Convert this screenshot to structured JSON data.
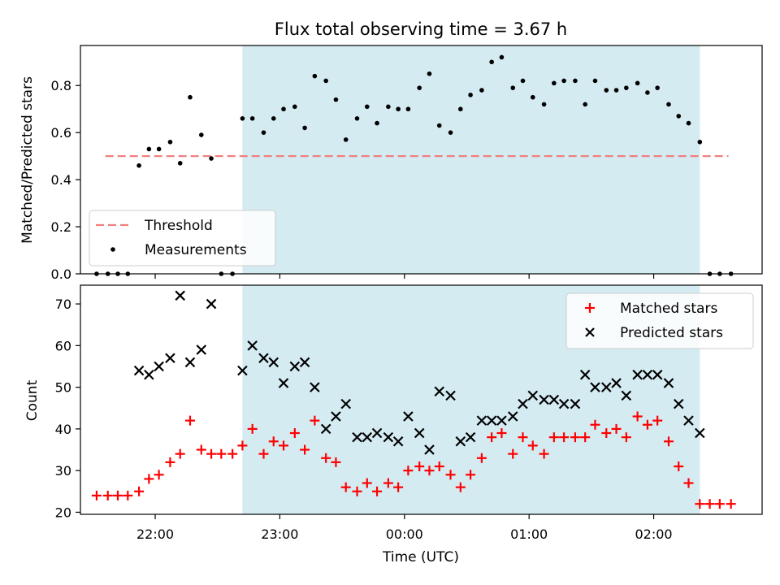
{
  "chart_data": [
    {
      "type": "scatter",
      "title": "Flux total observing time = 3.67 h",
      "xlabel": "",
      "ylabel": "Matched/Predicted stars",
      "ylim": [
        0,
        0.97
      ],
      "yticks": [
        "0.0",
        "0.2",
        "0.4",
        "0.6",
        "0.8"
      ],
      "ytick_values": [
        0,
        0.2,
        0.4,
        0.6,
        0.8
      ],
      "shaded_x_range": [
        22.7,
        2.37
      ],
      "threshold": {
        "name": "Threshold",
        "value": 0.5,
        "x_range": [
          21.6,
          2.6
        ],
        "color": "#f08080"
      },
      "legend": {
        "position": "lower-left",
        "entries": [
          "Threshold",
          "Measurements"
        ]
      },
      "series": [
        {
          "name": "Measurements",
          "color": "#000000",
          "x": [
            21.53,
            21.62,
            21.7,
            21.78,
            21.87,
            21.95,
            22.03,
            22.12,
            22.2,
            22.28,
            22.37,
            22.45,
            22.53,
            22.62,
            22.7,
            22.78,
            22.87,
            22.95,
            23.03,
            23.12,
            23.2,
            23.28,
            23.37,
            23.45,
            23.53,
            23.62,
            23.7,
            23.78,
            23.87,
            23.95,
            0.03,
            0.12,
            0.2,
            0.28,
            0.37,
            0.45,
            0.53,
            0.62,
            0.7,
            0.78,
            0.87,
            0.95,
            1.03,
            1.12,
            1.2,
            1.28,
            1.37,
            1.45,
            1.53,
            1.62,
            1.7,
            1.78,
            1.87,
            1.95,
            2.03,
            2.12,
            2.2,
            2.28,
            2.37,
            2.45,
            2.53,
            2.62
          ],
          "y": [
            0,
            0,
            0,
            0,
            0.46,
            0.53,
            0.53,
            0.56,
            0.47,
            0.75,
            0.59,
            0.49,
            0,
            0,
            0.66,
            0.66,
            0.6,
            0.66,
            0.7,
            0.71,
            0.62,
            0.84,
            0.82,
            0.74,
            0.57,
            0.66,
            0.71,
            0.64,
            0.71,
            0.7,
            0.7,
            0.79,
            0.85,
            0.63,
            0.6,
            0.7,
            0.76,
            0.78,
            0.9,
            0.92,
            0.79,
            0.82,
            0.75,
            0.72,
            0.81,
            0.82,
            0.82,
            0.72,
            0.82,
            0.78,
            0.78,
            0.79,
            0.81,
            0.77,
            0.79,
            0.72,
            0.67,
            0.64,
            0.56,
            0,
            0,
            0
          ]
        }
      ]
    },
    {
      "type": "scatter",
      "title": "",
      "xlabel": "Time (UTC)",
      "ylabel": "Count",
      "ylim": [
        19.5,
        74.5
      ],
      "yticks": [
        "20",
        "30",
        "40",
        "50",
        "60",
        "70"
      ],
      "ytick_values": [
        20,
        30,
        40,
        50,
        60,
        70
      ],
      "xticks": [
        "22:00",
        "23:00",
        "00:00",
        "01:00",
        "02:00"
      ],
      "xtick_values": [
        22,
        23,
        0,
        1,
        2
      ],
      "xlim": [
        21.4,
        2.87
      ],
      "shaded_x_range": [
        22.7,
        2.37
      ],
      "legend": {
        "position": "upper-right",
        "entries": [
          "Matched stars",
          "Predicted stars"
        ]
      },
      "series": [
        {
          "name": "Matched stars",
          "marker": "plus",
          "color": "#ff0000",
          "x": [
            21.53,
            21.62,
            21.7,
            21.78,
            21.87,
            21.95,
            22.03,
            22.12,
            22.2,
            22.28,
            22.37,
            22.45,
            22.53,
            22.62,
            22.7,
            22.78,
            22.87,
            22.95,
            23.03,
            23.12,
            23.2,
            23.28,
            23.37,
            23.45,
            23.53,
            23.62,
            23.7,
            23.78,
            23.87,
            23.95,
            0.03,
            0.12,
            0.2,
            0.28,
            0.37,
            0.45,
            0.53,
            0.62,
            0.7,
            0.78,
            0.87,
            0.95,
            1.03,
            1.12,
            1.2,
            1.28,
            1.37,
            1.45,
            1.53,
            1.62,
            1.7,
            1.78,
            1.87,
            1.95,
            2.03,
            2.12,
            2.2,
            2.28,
            2.37,
            2.45,
            2.53,
            2.62
          ],
          "y": [
            24,
            24,
            24,
            24,
            25,
            28,
            29,
            32,
            34,
            42,
            35,
            34,
            34,
            34,
            36,
            40,
            34,
            37,
            36,
            39,
            35,
            42,
            33,
            32,
            26,
            25,
            27,
            25,
            27,
            26,
            30,
            31,
            30,
            31,
            29,
            26,
            29,
            33,
            38,
            39,
            34,
            38,
            36,
            34,
            38,
            38,
            38,
            38,
            41,
            39,
            40,
            38,
            43,
            41,
            42,
            37,
            31,
            27,
            22,
            22,
            22,
            22
          ]
        },
        {
          "name": "Predicted stars",
          "marker": "x",
          "color": "#000000",
          "x": [
            21.87,
            21.95,
            22.03,
            22.12,
            22.2,
            22.28,
            22.37,
            22.45,
            22.7,
            22.78,
            22.87,
            22.95,
            23.03,
            23.12,
            23.2,
            23.28,
            23.37,
            23.45,
            23.53,
            23.62,
            23.7,
            23.78,
            23.87,
            23.95,
            0.03,
            0.12,
            0.2,
            0.28,
            0.37,
            0.45,
            0.53,
            0.62,
            0.7,
            0.78,
            0.87,
            0.95,
            1.03,
            1.12,
            1.2,
            1.28,
            1.37,
            1.45,
            1.53,
            1.62,
            1.7,
            1.78,
            1.87,
            1.95,
            2.03,
            2.12,
            2.2,
            2.28,
            2.37
          ],
          "y": [
            54,
            53,
            55,
            57,
            72,
            56,
            59,
            70,
            54,
            60,
            57,
            56,
            51,
            55,
            56,
            50,
            40,
            43,
            46,
            38,
            38,
            39,
            38,
            37,
            43,
            39,
            35,
            49,
            48,
            37,
            38,
            42,
            42,
            42,
            43,
            46,
            48,
            47,
            47,
            46,
            46,
            53,
            50,
            50,
            51,
            48,
            53,
            53,
            53,
            51,
            46,
            42,
            39
          ]
        }
      ]
    }
  ]
}
